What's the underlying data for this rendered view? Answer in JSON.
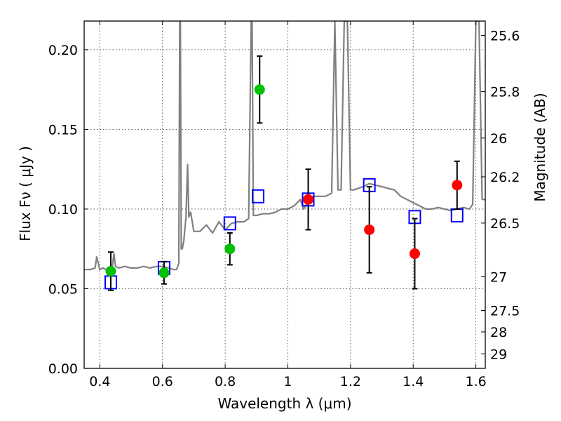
{
  "chart_data": {
    "type": "scatter",
    "title": "",
    "xlabel": "Wavelength  λ (μm)",
    "ylabel": "Flux  Fν  ( μJy )",
    "ylabel_right": "Magnitude (AB)",
    "xlim": [
      0.35,
      1.63
    ],
    "ylim": [
      0.0,
      0.218
    ],
    "grid": true,
    "legend": "none",
    "x_ticks": [
      {
        "value": 0.4,
        "label": "0.4"
      },
      {
        "value": 0.6,
        "label": "0.6"
      },
      {
        "value": 0.8,
        "label": "0.8"
      },
      {
        "value": 1.0,
        "label": "1"
      },
      {
        "value": 1.2,
        "label": "1.2"
      },
      {
        "value": 1.4,
        "label": "1.4"
      },
      {
        "value": 1.6,
        "label": "1.6"
      }
    ],
    "y_ticks": [
      {
        "value": 0.0,
        "label": "0.00"
      },
      {
        "value": 0.05,
        "label": "0.05"
      },
      {
        "value": 0.1,
        "label": "0.10"
      },
      {
        "value": 0.15,
        "label": "0.15"
      },
      {
        "value": 0.2,
        "label": "0.20"
      }
    ],
    "right_ticks": [
      {
        "value": 25.6,
        "label": "25.6"
      },
      {
        "value": 25.8,
        "label": "25.8"
      },
      {
        "value": 26.0,
        "label": "26"
      },
      {
        "value": 26.2,
        "label": "26.2"
      },
      {
        "value": 26.5,
        "label": "26.5"
      },
      {
        "value": 27.0,
        "label": "27"
      },
      {
        "value": 27.5,
        "label": "27.5"
      },
      {
        "value": 28.0,
        "label": "28"
      },
      {
        "value": 29.0,
        "label": "29"
      }
    ],
    "series": [
      {
        "marker": "line",
        "color": "#808080",
        "x": [
          0.35,
          0.37,
          0.385,
          0.39,
          0.4,
          0.41,
          0.42,
          0.43,
          0.44,
          0.445,
          0.45,
          0.46,
          0.48,
          0.5,
          0.52,
          0.54,
          0.56,
          0.58,
          0.6,
          0.62,
          0.635,
          0.645,
          0.652,
          0.655,
          0.657,
          0.66,
          0.663,
          0.668,
          0.675,
          0.68,
          0.684,
          0.69,
          0.7,
          0.72,
          0.74,
          0.76,
          0.78,
          0.8,
          0.82,
          0.84,
          0.86,
          0.875,
          0.883,
          0.886,
          0.89,
          0.9,
          0.92,
          0.94,
          0.96,
          0.98,
          1.0,
          1.02,
          1.04,
          1.05,
          1.06,
          1.08,
          1.1,
          1.12,
          1.14,
          1.15,
          1.16,
          1.17,
          1.18,
          1.19,
          1.2,
          1.21,
          1.24,
          1.26,
          1.28,
          1.3,
          1.32,
          1.34,
          1.36,
          1.38,
          1.4,
          1.42,
          1.44,
          1.46,
          1.48,
          1.5,
          1.52,
          1.54,
          1.56,
          1.58,
          1.59,
          1.6,
          1.61,
          1.62,
          1.63
        ],
        "y": [
          0.062,
          0.062,
          0.063,
          0.07,
          0.062,
          0.063,
          0.062,
          0.063,
          0.064,
          0.072,
          0.064,
          0.063,
          0.064,
          0.063,
          0.063,
          0.064,
          0.063,
          0.064,
          0.064,
          0.063,
          0.062,
          0.062,
          0.066,
          0.218,
          0.218,
          0.075,
          0.075,
          0.08,
          0.095,
          0.128,
          0.095,
          0.098,
          0.086,
          0.086,
          0.09,
          0.085,
          0.092,
          0.087,
          0.091,
          0.092,
          0.092,
          0.094,
          0.218,
          0.218,
          0.096,
          0.096,
          0.097,
          0.097,
          0.098,
          0.1,
          0.1,
          0.102,
          0.106,
          0.1,
          0.103,
          0.108,
          0.108,
          0.108,
          0.11,
          0.218,
          0.112,
          0.112,
          0.218,
          0.218,
          0.112,
          0.112,
          0.114,
          0.116,
          0.115,
          0.114,
          0.113,
          0.112,
          0.108,
          0.106,
          0.104,
          0.102,
          0.1,
          0.1,
          0.101,
          0.1,
          0.099,
          0.1,
          0.101,
          0.1,
          0.103,
          0.218,
          0.218,
          0.106,
          0.106
        ]
      },
      {
        "marker": "square-open",
        "color": "#0000ff",
        "x": [
          0.435,
          0.605,
          0.815,
          0.905,
          1.065,
          1.26,
          1.405,
          1.54
        ],
        "y": [
          0.054,
          0.063,
          0.091,
          0.108,
          0.106,
          0.115,
          0.095,
          0.096
        ]
      },
      {
        "marker": "circle",
        "color": "#00c000",
        "x": [
          0.435,
          0.605,
          0.815,
          0.91
        ],
        "y": [
          0.061,
          0.06,
          0.075,
          0.175
        ],
        "err": [
          0.012,
          0.007,
          0.01,
          0.021
        ]
      },
      {
        "marker": "circle",
        "color": "#ff0000",
        "x": [
          1.065,
          1.26,
          1.405,
          1.54
        ],
        "y": [
          0.106,
          0.087,
          0.072,
          0.115
        ],
        "err": [
          0.019,
          0.027,
          0.022,
          0.015
        ]
      }
    ]
  }
}
